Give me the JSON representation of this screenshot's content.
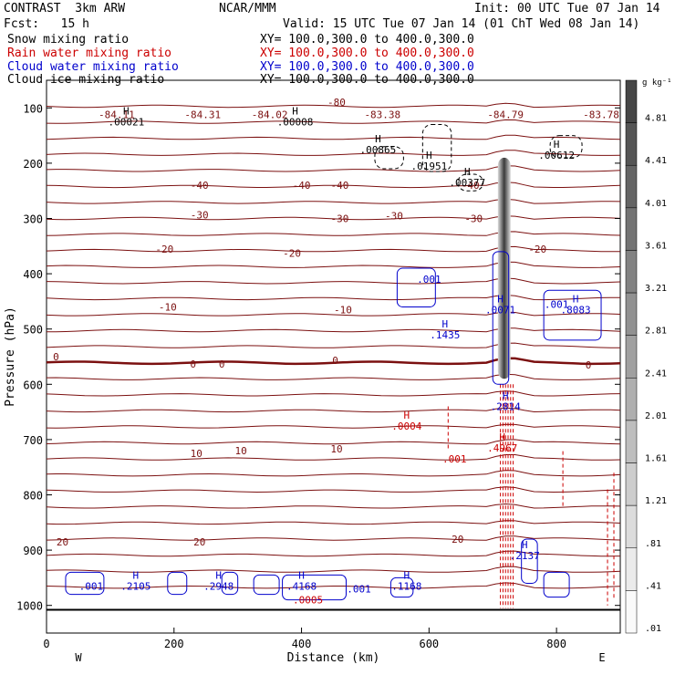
{
  "header": {
    "left_title": "CONTRAST  3km ARW",
    "center_title": "NCAR/MMM",
    "init": "Init: 00 UTC Tue 07 Jan 14",
    "fcst": "Fcst:   15 h",
    "valid": "Valid: 15 UTC Tue 07 Jan 14 (01 ChT Wed 08 Jan 14)",
    "fields": [
      {
        "label": "Snow mixing ratio",
        "xy": "XY= 100.0,300.0 to 400.0,300.0",
        "color": "#000000"
      },
      {
        "label": "Rain water mixing ratio",
        "xy": "XY= 100.0,300.0 to 400.0,300.0",
        "color": "#cc0000"
      },
      {
        "label": "Cloud water mixing ratio",
        "xy": "XY= 100.0,300.0 to 400.0,300.0",
        "color": "#0000cc"
      },
      {
        "label": "Cloud ice mixing ratio",
        "xy": "XY= 100.0,300.0 to 400.0,300.0",
        "color": "#000000"
      }
    ]
  },
  "chart_data": {
    "type": "contour",
    "xlabel": "Distance (km)",
    "ylabel": "Pressure (hPa)",
    "xlim": [
      0,
      900
    ],
    "ylim": [
      1050,
      50
    ],
    "x_ticks": [
      0,
      200,
      400,
      600,
      800
    ],
    "y_ticks": [
      100,
      200,
      300,
      400,
      500,
      600,
      700,
      800,
      900,
      1000
    ],
    "x_end_labels": {
      "left": "W",
      "right": "E"
    },
    "colorbar": {
      "unit": "g kg⁻¹",
      "labels": [
        "4.81",
        "4.41",
        "4.01",
        "3.61",
        "3.21",
        "2.81",
        "2.41",
        "2.01",
        "1.61",
        "1.21",
        ".81",
        ".41",
        ".01"
      ]
    },
    "temperature_contours": {
      "color": "#7b1010",
      "labels": [
        {
          "text": "-84.11",
          "x": 110,
          "p": 112
        },
        {
          "text": "-84.31",
          "x": 245,
          "p": 112
        },
        {
          "text": "-84.02",
          "x": 350,
          "p": 112
        },
        {
          "text": "-80",
          "x": 455,
          "p": 90
        },
        {
          "text": "-83.38",
          "x": 527,
          "p": 112
        },
        {
          "text": "-84.79",
          "x": 720,
          "p": 112
        },
        {
          "text": "-83.78",
          "x": 870,
          "p": 112
        },
        {
          "text": "-40",
          "x": 240,
          "p": 240
        },
        {
          "text": "-40",
          "x": 400,
          "p": 240
        },
        {
          "text": "-40",
          "x": 460,
          "p": 240
        },
        {
          "text": "-40",
          "x": 665,
          "p": 240
        },
        {
          "text": "-30",
          "x": 240,
          "p": 293
        },
        {
          "text": "-30",
          "x": 460,
          "p": 300
        },
        {
          "text": "-30",
          "x": 545,
          "p": 295
        },
        {
          "text": "-30",
          "x": 670,
          "p": 300
        },
        {
          "text": "-20",
          "x": 185,
          "p": 355
        },
        {
          "text": "-20",
          "x": 385,
          "p": 363
        },
        {
          "text": "-20",
          "x": 770,
          "p": 355
        },
        {
          "text": "-10",
          "x": 190,
          "p": 460
        },
        {
          "text": "-10",
          "x": 465,
          "p": 465
        },
        {
          "text": "0",
          "x": 15,
          "p": 550
        },
        {
          "text": "0",
          "x": 230,
          "p": 563
        },
        {
          "text": "0",
          "x": 275,
          "p": 563
        },
        {
          "text": "0",
          "x": 453,
          "p": 557
        },
        {
          "text": "0",
          "x": 850,
          "p": 565
        },
        {
          "text": "10",
          "x": 235,
          "p": 725
        },
        {
          "text": "10",
          "x": 305,
          "p": 720
        },
        {
          "text": "10",
          "x": 455,
          "p": 717
        },
        {
          "text": "20",
          "x": 25,
          "p": 885
        },
        {
          "text": "20",
          "x": 240,
          "p": 885
        },
        {
          "text": "20",
          "x": 645,
          "p": 880
        }
      ]
    },
    "highs": [
      {
        "text": "H",
        "value": ".00021",
        "x": 125,
        "p": 125,
        "color": "#000000"
      },
      {
        "text": "H",
        "value": ".00008",
        "x": 390,
        "p": 125,
        "color": "#000000"
      },
      {
        "text": "H",
        "value": ".00865",
        "x": 520,
        "p": 175,
        "color": "#000000"
      },
      {
        "text": "H",
        "value": ".01951",
        "x": 600,
        "p": 205,
        "color": "#000000"
      },
      {
        "text": "H",
        "value": ".00377",
        "x": 660,
        "p": 235,
        "color": "#000000"
      },
      {
        "text": "H",
        "value": ".00612",
        "x": 800,
        "p": 185,
        "color": "#000000"
      },
      {
        "text": "",
        "value": ".001",
        "x": 600,
        "p": 410,
        "color": "#0000cc"
      },
      {
        "text": "H",
        "value": ".1435",
        "x": 625,
        "p": 510,
        "color": "#0000cc"
      },
      {
        "text": "H",
        "value": ".0071",
        "x": 712,
        "p": 465,
        "color": "#0000cc"
      },
      {
        "text": "",
        "value": ".001",
        "x": 800,
        "p": 455,
        "color": "#0000cc"
      },
      {
        "text": "H",
        "value": ".8083",
        "x": 830,
        "p": 465,
        "color": "#0000cc"
      },
      {
        "text": "H",
        "value": ".2814",
        "x": 720,
        "p": 640,
        "color": "#0000cc"
      },
      {
        "text": "H",
        "value": ".0004",
        "x": 565,
        "p": 675,
        "color": "#cc0000"
      },
      {
        "text": "",
        "value": ".001",
        "x": 640,
        "p": 735,
        "color": "#cc0000"
      },
      {
        "text": "H",
        "value": ".4967",
        "x": 715,
        "p": 715,
        "color": "#cc0000"
      },
      {
        "text": "H",
        "value": ".2137",
        "x": 750,
        "p": 910,
        "color": "#0000cc"
      },
      {
        "text": "",
        "value": ".001",
        "x": 70,
        "p": 965,
        "color": "#0000cc"
      },
      {
        "text": "H",
        "value": ".2105",
        "x": 140,
        "p": 965,
        "color": "#0000cc"
      },
      {
        "text": "H",
        "value": ".2948",
        "x": 270,
        "p": 965,
        "color": "#0000cc"
      },
      {
        "text": "H",
        "value": ".4168",
        "x": 400,
        "p": 965,
        "color": "#0000cc"
      },
      {
        "text": "",
        "value": ".0005",
        "x": 410,
        "p": 990,
        "color": "#cc0000"
      },
      {
        "text": "",
        "value": ".001",
        "x": 490,
        "p": 970,
        "color": "#0000cc"
      },
      {
        "text": "H",
        "value": ".1168",
        "x": 565,
        "p": 965,
        "color": "#0000cc"
      }
    ]
  }
}
